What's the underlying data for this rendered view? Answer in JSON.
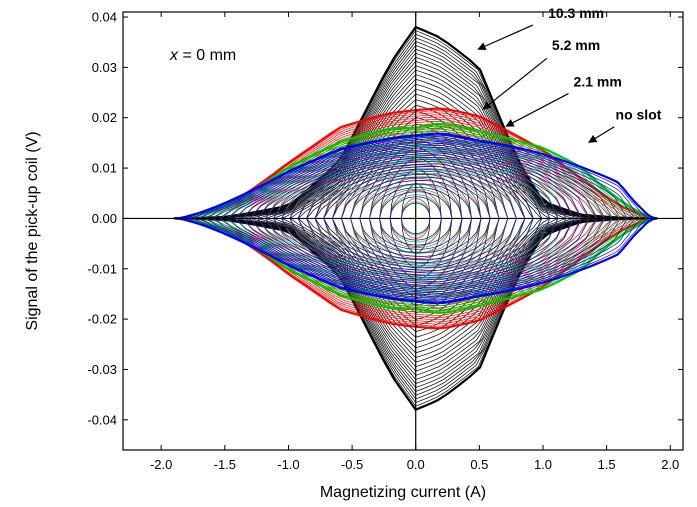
{
  "chart_data": {
    "type": "line",
    "xlabel": "Magnetizing current (A)",
    "ylabel": "Signal of the pick-up coil (V)",
    "xlim": [
      -2.3,
      2.1
    ],
    "ylim": [
      -0.046,
      0.041
    ],
    "x_ticks": [
      -2.0,
      -1.5,
      -1.0,
      -0.5,
      0.0,
      0.5,
      1.0,
      1.5,
      2.0
    ],
    "x_tick_labels": [
      "-2.0",
      "-1.5",
      "-1.0",
      "-0.5",
      "0.0",
      "0.5",
      "1.0",
      "1.5",
      "2.0"
    ],
    "y_ticks": [
      -0.04,
      -0.03,
      -0.02,
      -0.01,
      0.0,
      0.01,
      0.02,
      0.03,
      0.04
    ],
    "y_tick_labels": [
      "-0.04",
      "-0.03",
      "-0.02",
      "-0.01",
      "0.00",
      "0.01",
      "0.02",
      "0.03",
      "0.04"
    ],
    "grid": false,
    "zero_lines": true,
    "annotation": {
      "italic": "x",
      "rest": " = 0 mm"
    },
    "series": [
      {
        "name": "10.3 mm",
        "color": "#000000",
        "peak_signal": 0.038,
        "max_current": 1.9,
        "outer_x": [
          -1.9,
          -1.5,
          -1.0,
          -0.6,
          -0.2,
          0.0,
          0.2,
          0.5,
          0.8,
          1.0,
          1.3,
          1.6,
          1.9
        ],
        "outer_y": [
          0.0,
          0.0005,
          0.003,
          0.012,
          0.031,
          0.038,
          0.036,
          0.031,
          0.013,
          0.004,
          0.001,
          0.0003,
          0.0
        ]
      },
      {
        "name": "5.2 mm",
        "color": "#ff0000",
        "peak_signal": 0.022,
        "max_current": 1.9,
        "outer_x": [
          -1.9,
          -1.5,
          -1.0,
          -0.6,
          -0.2,
          0.0,
          0.2,
          0.5,
          0.8,
          1.0,
          1.3,
          1.6,
          1.9
        ],
        "outer_y": [
          0.0,
          0.004,
          0.013,
          0.019,
          0.021,
          0.0215,
          0.022,
          0.021,
          0.018,
          0.016,
          0.011,
          0.005,
          0.0
        ]
      },
      {
        "name": "2.1 mm",
        "color": "#00c800",
        "peak_signal": 0.019,
        "max_current": 1.9,
        "outer_x": [
          -1.9,
          -1.5,
          -1.0,
          -0.6,
          -0.2,
          0.0,
          0.2,
          0.5,
          0.8,
          1.0,
          1.3,
          1.6,
          1.9
        ],
        "outer_y": [
          0.0,
          0.004,
          0.012,
          0.016,
          0.018,
          0.018,
          0.019,
          0.018,
          0.017,
          0.0165,
          0.014,
          0.007,
          0.0
        ]
      },
      {
        "name": "no slot",
        "color": "#0000ff",
        "peak_signal": 0.017,
        "max_current": 1.9,
        "outer_x": [
          -1.9,
          -1.5,
          -1.0,
          -0.6,
          -0.2,
          0.0,
          0.2,
          0.5,
          0.8,
          1.0,
          1.3,
          1.6,
          1.9
        ],
        "outer_y": [
          0.0,
          0.005,
          0.011,
          0.0145,
          0.016,
          0.0165,
          0.017,
          0.016,
          0.0155,
          0.015,
          0.014,
          0.013,
          0.0
        ]
      }
    ],
    "callouts": [
      {
        "label": "10.3 mm",
        "series": "10.3 mm",
        "label_x": 1.04,
        "label_y": 0.0398,
        "arrow_from": [
          0.92,
          0.0384
        ],
        "arrow_to": [
          0.49,
          0.0336
        ]
      },
      {
        "label": "5.2 mm",
        "series": "5.2 mm",
        "label_x": 1.07,
        "label_y": 0.0335,
        "arrow_from": [
          1.03,
          0.0318
        ],
        "arrow_to": [
          0.53,
          0.0217
        ]
      },
      {
        "label": "2.1 mm",
        "series": "2.1 mm",
        "label_x": 1.24,
        "label_y": 0.0262,
        "arrow_from": [
          1.2,
          0.0248
        ],
        "arrow_to": [
          0.71,
          0.0183
        ]
      },
      {
        "label": "no slot",
        "series": "no slot",
        "label_x": 1.57,
        "label_y": 0.0196,
        "arrow_from": [
          1.56,
          0.0182
        ],
        "arrow_to": [
          1.36,
          0.0151
        ]
      }
    ]
  }
}
